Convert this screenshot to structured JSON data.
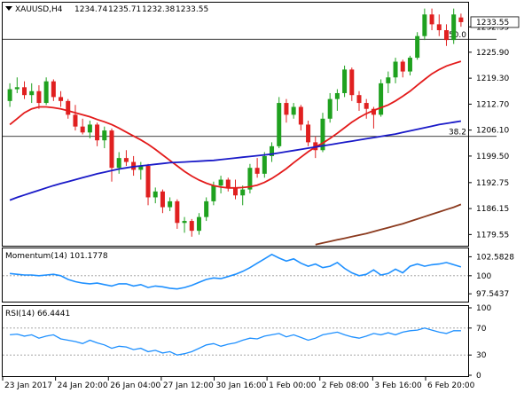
{
  "header": {
    "symbol": "XAUUSD,H4",
    "open": "1234.74",
    "high": "1235.71",
    "low": "1232.38",
    "close": "1233.55"
  },
  "chart_data": [
    {
      "type": "candlestick",
      "title": "XAUUSD,H4 1234.74 1235.71 1232.38 1233.55",
      "ylim": [
        1176.7,
        1238.5
      ],
      "y_ticks": [
        "1232.35",
        "1225.90",
        "1219.30",
        "1212.70",
        "1206.10",
        "1199.50",
        "1192.75",
        "1186.15",
        "1179.55"
      ],
      "current_price_label": "1233.55",
      "x_ticks": [
        "23 Jan 2017",
        "24 Jan 20:00",
        "26 Jan 04:00",
        "27 Jan 12:00",
        "30 Jan 16:00",
        "1 Feb 00:00",
        "2 Feb 08:00",
        "3 Feb 16:00",
        "6 Feb 20:00"
      ],
      "levels": [
        {
          "label": "50.0",
          "value": 1229.2
        },
        {
          "label": "38.2",
          "value": 1204.5
        }
      ],
      "candles": [
        [
          1213.5,
          1218.0,
          1212.0,
          1216.5
        ],
        [
          1216.5,
          1219.5,
          1215.5,
          1217.0
        ],
        [
          1217.0,
          1218.5,
          1214.0,
          1215.0
        ],
        [
          1215.0,
          1218.0,
          1213.0,
          1216.0
        ],
        [
          1216.0,
          1217.5,
          1211.5,
          1213.0
        ],
        [
          1213.0,
          1219.5,
          1212.5,
          1218.5
        ],
        [
          1218.5,
          1219.0,
          1213.5,
          1214.5
        ],
        [
          1214.5,
          1216.0,
          1212.0,
          1213.5
        ],
        [
          1213.5,
          1214.0,
          1209.0,
          1210.0
        ],
        [
          1210.0,
          1212.5,
          1206.0,
          1207.0
        ],
        [
          1207.0,
          1209.0,
          1205.0,
          1205.5
        ],
        [
          1205.5,
          1208.5,
          1204.0,
          1207.5
        ],
        [
          1207.5,
          1208.0,
          1202.0,
          1203.5
        ],
        [
          1203.5,
          1207.0,
          1201.5,
          1206.0
        ],
        [
          1206.0,
          1206.5,
          1193.0,
          1196.5
        ],
        [
          1196.5,
          1200.5,
          1195.0,
          1199.0
        ],
        [
          1199.0,
          1201.0,
          1197.0,
          1198.0
        ],
        [
          1198.0,
          1199.5,
          1194.5,
          1196.0
        ],
        [
          1196.0,
          1198.0,
          1193.5,
          1197.0
        ],
        [
          1197.0,
          1197.5,
          1187.0,
          1189.0
        ],
        [
          1189.0,
          1191.5,
          1187.5,
          1190.5
        ],
        [
          1190.5,
          1191.0,
          1185.0,
          1186.5
        ],
        [
          1186.5,
          1189.0,
          1185.5,
          1188.0
        ],
        [
          1188.0,
          1188.5,
          1181.0,
          1182.5
        ],
        [
          1182.5,
          1184.0,
          1180.0,
          1183.0
        ],
        [
          1183.0,
          1183.5,
          1179.0,
          1180.5
        ],
        [
          1180.5,
          1185.0,
          1179.5,
          1184.0
        ],
        [
          1184.0,
          1189.0,
          1183.0,
          1188.0
        ],
        [
          1188.0,
          1193.0,
          1187.0,
          1192.0
        ],
        [
          1192.0,
          1194.5,
          1190.0,
          1193.5
        ],
        [
          1193.5,
          1194.0,
          1190.5,
          1191.5
        ],
        [
          1191.5,
          1193.5,
          1188.5,
          1189.5
        ],
        [
          1189.5,
          1192.0,
          1187.0,
          1191.0
        ],
        [
          1191.0,
          1197.5,
          1190.0,
          1196.5
        ],
        [
          1196.5,
          1199.0,
          1194.0,
          1195.0
        ],
        [
          1195.0,
          1200.5,
          1194.0,
          1199.5
        ],
        [
          1199.5,
          1203.0,
          1198.0,
          1202.0
        ],
        [
          1202.0,
          1214.5,
          1201.5,
          1213.0
        ],
        [
          1213.0,
          1214.0,
          1208.0,
          1210.0
        ],
        [
          1210.0,
          1213.0,
          1209.0,
          1212.0
        ],
        [
          1212.0,
          1212.5,
          1206.0,
          1207.5
        ],
        [
          1207.5,
          1208.5,
          1202.0,
          1203.0
        ],
        [
          1203.0,
          1204.5,
          1199.0,
          1201.0
        ],
        [
          1201.0,
          1210.5,
          1200.5,
          1209.0
        ],
        [
          1209.0,
          1215.5,
          1208.0,
          1214.0
        ],
        [
          1214.0,
          1216.5,
          1211.0,
          1215.5
        ],
        [
          1215.5,
          1222.5,
          1214.5,
          1221.5
        ],
        [
          1221.5,
          1222.0,
          1213.5,
          1215.0
        ],
        [
          1215.0,
          1216.0,
          1211.0,
          1213.0
        ],
        [
          1213.0,
          1214.0,
          1209.0,
          1211.5
        ],
        [
          1211.5,
          1212.0,
          1206.5,
          1210.0
        ],
        [
          1210.0,
          1219.0,
          1209.5,
          1218.0
        ],
        [
          1218.0,
          1221.0,
          1215.5,
          1219.5
        ],
        [
          1219.5,
          1224.5,
          1218.0,
          1223.5
        ],
        [
          1223.5,
          1224.0,
          1219.5,
          1221.0
        ],
        [
          1221.0,
          1225.0,
          1220.0,
          1224.5
        ],
        [
          1224.5,
          1231.0,
          1224.0,
          1230.0
        ],
        [
          1230.0,
          1237.0,
          1229.0,
          1235.5
        ],
        [
          1235.5,
          1237.0,
          1231.5,
          1233.0
        ],
        [
          1233.0,
          1235.5,
          1230.0,
          1231.5
        ],
        [
          1231.5,
          1233.0,
          1227.5,
          1229.0
        ],
        [
          1229.0,
          1237.0,
          1228.0,
          1235.5
        ],
        [
          1234.74,
          1235.71,
          1232.38,
          1233.55
        ]
      ],
      "series": [
        {
          "color": "#e31b1b",
          "values": [
            1207.5,
            1209,
            1210.5,
            1211.5,
            1212,
            1212,
            1211.8,
            1211.5,
            1211,
            1210.5,
            1210,
            1209.5,
            1208.8,
            1208.2,
            1207.5,
            1206.6,
            1205.6,
            1204.6,
            1203.6,
            1202.5,
            1201.2,
            1199.8,
            1198.4,
            1197,
            1195.6,
            1194.4,
            1193.4,
            1192.6,
            1192,
            1191.6,
            1191.4,
            1191.4,
            1191.5,
            1191.7,
            1192.1,
            1192.8,
            1193.8,
            1195,
            1196.3,
            1197.8,
            1199.2,
            1200.6,
            1201.8,
            1202.8,
            1204,
            1205.3,
            1206.7,
            1208.1,
            1209.3,
            1210.3,
            1211.1,
            1211.8,
            1212.5,
            1213.5,
            1214.7,
            1216,
            1217.5,
            1219,
            1220.4,
            1221.5,
            1222.4,
            1223,
            1223.6
          ]
        },
        {
          "color": "#1a1ac8",
          "values": [
            1188.3,
            1189,
            1189.6,
            1190.2,
            1190.8,
            1191.4,
            1192,
            1192.5,
            1193,
            1193.5,
            1194,
            1194.5,
            1195,
            1195.4,
            1195.8,
            1196.2,
            1196.5,
            1196.8,
            1197,
            1197.2,
            1197.4,
            1197.6,
            1197.8,
            1197.9,
            1198,
            1198.1,
            1198.2,
            1198.3,
            1198.4,
            1198.6,
            1198.8,
            1199,
            1199.2,
            1199.4,
            1199.6,
            1199.8,
            1200,
            1200.3,
            1200.6,
            1200.9,
            1201.2,
            1201.5,
            1201.8,
            1202.1,
            1202.4,
            1202.7,
            1203,
            1203.3,
            1203.6,
            1203.9,
            1204.2,
            1204.5,
            1204.8,
            1205.1,
            1205.5,
            1205.9,
            1206.3,
            1206.7,
            1207.1,
            1207.5,
            1207.8,
            1208.1,
            1208.4
          ]
        },
        {
          "color": "#8b3a1e",
          "start_index": 42,
          "values": [
            1177.0,
            1177.4,
            1177.8,
            1178.2,
            1178.6,
            1179.0,
            1179.4,
            1179.8,
            1180.3,
            1180.8,
            1181.3,
            1181.8,
            1182.3,
            1182.9,
            1183.5,
            1184.1,
            1184.7,
            1185.3,
            1185.9,
            1186.5,
            1187.2
          ]
        }
      ]
    },
    {
      "type": "line",
      "title": "Momentum(14) 101.1778",
      "ylim": [
        96.6,
        103.6
      ],
      "y_ticks": [
        "102.5828",
        "100",
        "97.5437"
      ],
      "reference_line": 100,
      "series": [
        {
          "name": "Momentum(14)",
          "color": "#1e90ff",
          "values": [
            100.3,
            100.2,
            100.1,
            100.1,
            100.0,
            100.1,
            100.2,
            100.0,
            99.5,
            99.2,
            99.0,
            98.9,
            99.0,
            98.8,
            98.6,
            98.9,
            98.9,
            98.6,
            98.8,
            98.4,
            98.6,
            98.5,
            98.3,
            98.2,
            98.4,
            98.7,
            99.1,
            99.5,
            99.7,
            99.6,
            99.9,
            100.2,
            100.6,
            101.1,
            101.7,
            102.3,
            102.9,
            102.4,
            102.0,
            102.3,
            101.7,
            101.3,
            101.6,
            101.1,
            101.3,
            101.8,
            101.0,
            100.4,
            100.0,
            100.2,
            100.8,
            100.1,
            100.3,
            100.9,
            100.4,
            101.3,
            101.6,
            101.3,
            101.5,
            101.6,
            101.8,
            101.5,
            101.2
          ]
        }
      ]
    },
    {
      "type": "line",
      "title": "RSI(14) 66.4441",
      "ylim": [
        0,
        100
      ],
      "y_ticks": [
        "100",
        "70",
        "30",
        "0"
      ],
      "reference_lines": [
        70,
        30
      ],
      "series": [
        {
          "name": "RSI(14)",
          "color": "#1e90ff",
          "values": [
            60,
            61,
            58,
            60,
            55,
            58,
            60,
            54,
            52,
            50,
            47,
            52,
            48,
            45,
            40,
            43,
            42,
            38,
            40,
            35,
            37,
            33,
            35,
            30,
            32,
            35,
            40,
            45,
            47,
            43,
            46,
            48,
            52,
            55,
            54,
            58,
            60,
            62,
            57,
            60,
            56,
            52,
            55,
            60,
            62,
            64,
            60,
            57,
            55,
            58,
            62,
            60,
            63,
            60,
            64,
            66,
            67,
            70,
            67,
            64,
            62,
            66,
            66
          ]
        }
      ]
    }
  ]
}
